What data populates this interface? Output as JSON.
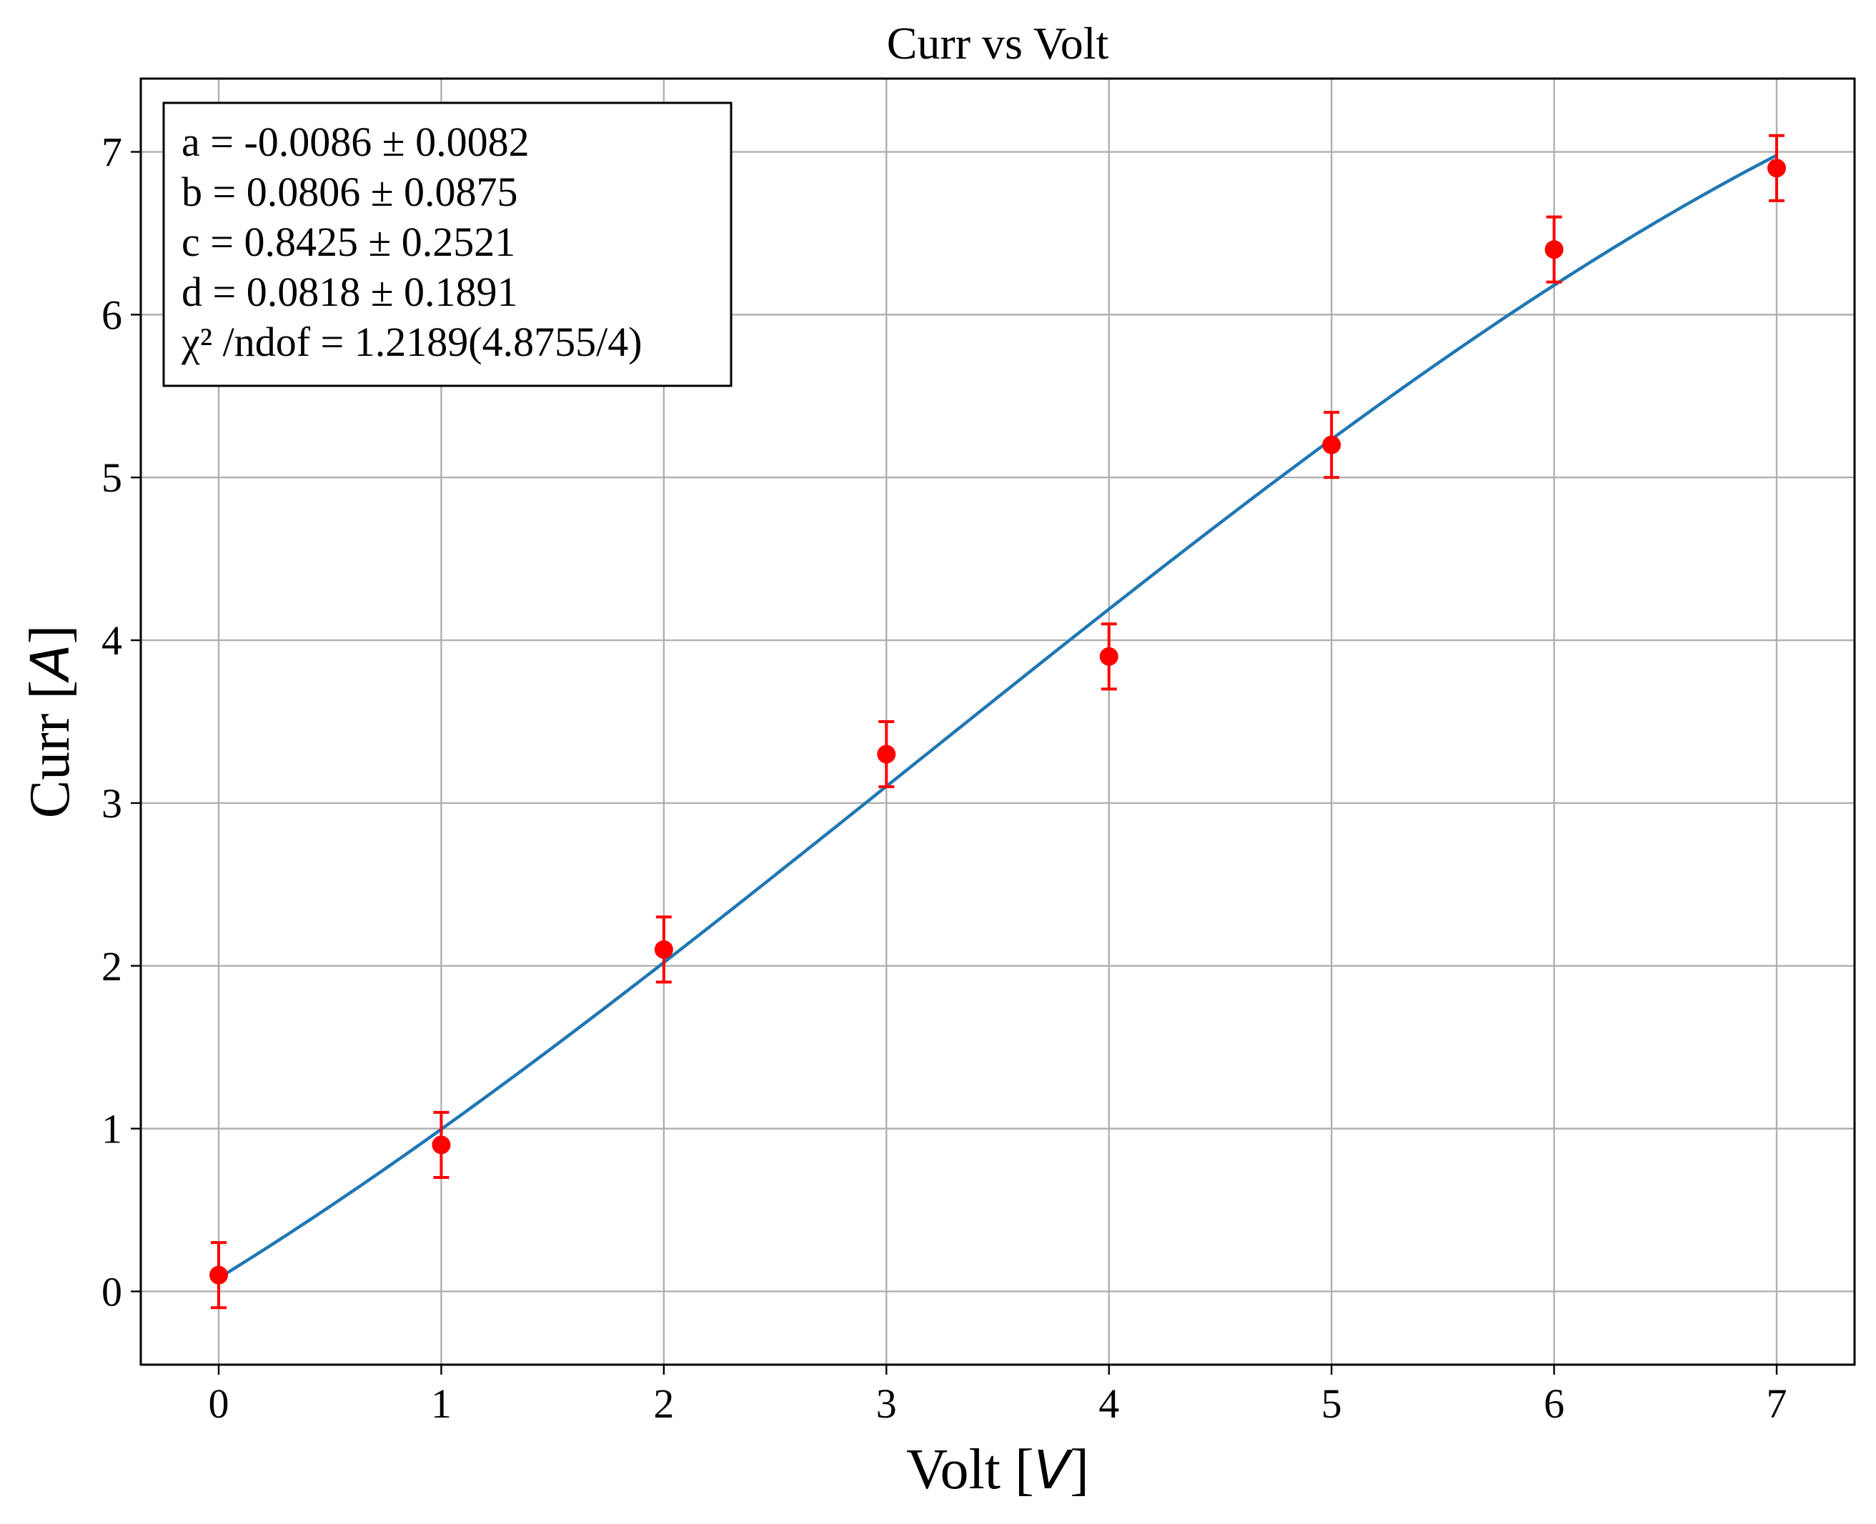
{
  "chart_data": {
    "type": "scatter",
    "title": "Curr vs Volt",
    "xlabel": {
      "main": "Volt [",
      "unit": "V",
      "close": "]"
    },
    "ylabel": {
      "main": "Curr [",
      "unit": "A",
      "close": "]"
    },
    "xlim": [
      -0.35,
      7.35
    ],
    "ylim": [
      -0.45,
      7.45
    ],
    "xticks": [
      0,
      1,
      2,
      3,
      4,
      5,
      6,
      7
    ],
    "yticks": [
      0,
      1,
      2,
      3,
      4,
      5,
      6,
      7
    ],
    "grid": true,
    "points": {
      "x": [
        0,
        1,
        2,
        3,
        4,
        5,
        6,
        7
      ],
      "y": [
        0.1,
        0.9,
        2.1,
        3.3,
        3.9,
        5.2,
        6.4,
        6.9
      ],
      "yerr": [
        0.2,
        0.2,
        0.2,
        0.2,
        0.2,
        0.2,
        0.2,
        0.2
      ],
      "color": "#ff0000"
    },
    "fit": {
      "model": "a*x^3 + b*x^2 + c*x + d",
      "coefficients": {
        "a": -0.0086,
        "b": 0.0806,
        "c": 0.8425,
        "d": 0.0818
      },
      "color": "#1f77b4"
    },
    "annotation": {
      "lines": [
        "a = -0.0086 ± 0.0082",
        "b = 0.0806 ± 0.0875",
        "c = 0.8425 ± 0.2521",
        "d = 0.0818 ± 0.1891",
        "χ² /ndof = 1.2189(4.8755/4)"
      ],
      "placement": "top-left"
    }
  }
}
